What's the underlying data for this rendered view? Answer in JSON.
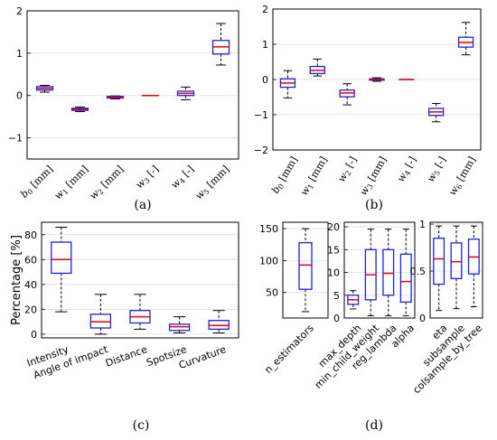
{
  "chart_data": [
    {
      "panel": "a",
      "panel_label": "(a)",
      "type": "box",
      "ylim": [
        -1.5,
        2
      ],
      "yticks": [
        -1,
        0,
        1,
        2
      ],
      "ytick_labels": [
        "−1",
        "0",
        "1",
        "2"
      ],
      "grid": true,
      "categories": [
        "b0 [mm]",
        "w1 [mm]",
        "w2 [mm]",
        "w3 [-]",
        "w4 [-]",
        "w5 [mm]"
      ],
      "tick_labels": [
        {
          "main": "b",
          "sub": "0",
          "unit": "[mm]"
        },
        {
          "main": "w",
          "sub": "1",
          "unit": "[mm]"
        },
        {
          "main": "w",
          "sub": "2",
          "unit": "[mm]"
        },
        {
          "main": "w",
          "sub": "3",
          "unit": "[-]"
        },
        {
          "main": "w",
          "sub": "4",
          "unit": "[-]"
        },
        {
          "main": "w",
          "sub": "5",
          "unit": "[mm]"
        }
      ],
      "boxes": [
        {
          "whisker_low": 0.08,
          "q1": 0.13,
          "median": 0.17,
          "q3": 0.21,
          "whisker_high": 0.24
        },
        {
          "whisker_low": -0.38,
          "q1": -0.35,
          "median": -0.32,
          "q3": -0.3,
          "whisker_high": -0.27
        },
        {
          "whisker_low": -0.08,
          "q1": -0.06,
          "median": -0.04,
          "q3": -0.02,
          "whisker_high": -0.01
        },
        {
          "whisker_low": 0.0,
          "q1": 0.0,
          "median": 0.0,
          "q3": 0.0,
          "whisker_high": 0.0
        },
        {
          "whisker_low": -0.1,
          "q1": 0.0,
          "median": 0.05,
          "q3": 0.1,
          "whisker_high": 0.2
        },
        {
          "whisker_low": 0.72,
          "q1": 0.98,
          "median": 1.15,
          "q3": 1.3,
          "whisker_high": 1.7
        }
      ]
    },
    {
      "panel": "b",
      "panel_label": "(b)",
      "type": "box",
      "ylim": [
        -2,
        2
      ],
      "yticks": [
        -2,
        -1,
        0,
        1,
        2
      ],
      "ytick_labels": [
        "−2",
        "−1",
        "0",
        "1",
        "2"
      ],
      "grid": true,
      "categories": [
        "b0 [mm]",
        "w1 [mm]",
        "w2 [-]",
        "w3 [mm]",
        "w4 [-]",
        "w5 [-]",
        "w6 [mm]"
      ],
      "tick_labels": [
        {
          "main": "b",
          "sub": "0",
          "unit": "[mm]"
        },
        {
          "main": "w",
          "sub": "1",
          "unit": "[mm]"
        },
        {
          "main": "w",
          "sub": "2",
          "unit": "[-]"
        },
        {
          "main": "w",
          "sub": "3",
          "unit": "[mm]"
        },
        {
          "main": "w",
          "sub": "4",
          "unit": "[-]"
        },
        {
          "main": "w",
          "sub": "5",
          "unit": "[-]"
        },
        {
          "main": "w",
          "sub": "6",
          "unit": "[mm]"
        }
      ],
      "boxes": [
        {
          "whisker_low": -0.52,
          "q1": -0.22,
          "median": -0.1,
          "q3": 0.02,
          "whisker_high": 0.25
        },
        {
          "whisker_low": 0.1,
          "q1": 0.17,
          "median": 0.26,
          "q3": 0.37,
          "whisker_high": 0.58
        },
        {
          "whisker_low": -0.72,
          "q1": -0.49,
          "median": -0.38,
          "q3": -0.3,
          "whisker_high": -0.12
        },
        {
          "whisker_low": -0.05,
          "q1": -0.02,
          "median": 0.0,
          "q3": 0.02,
          "whisker_high": 0.05
        },
        {
          "whisker_low": 0.0,
          "q1": 0.0,
          "median": 0.0,
          "q3": 0.0,
          "whisker_high": 0.0
        },
        {
          "whisker_low": -1.2,
          "q1": -1.02,
          "median": -0.92,
          "q3": -0.82,
          "whisker_high": -0.68
        },
        {
          "whisker_low": 0.7,
          "q1": 0.92,
          "median": 1.05,
          "q3": 1.2,
          "whisker_high": 1.62
        }
      ]
    },
    {
      "panel": "c",
      "panel_label": "(c)",
      "type": "box",
      "ylabel": "Percentage [%]",
      "ylim": [
        -3,
        90
      ],
      "yticks": [
        0,
        20,
        40,
        60,
        80
      ],
      "ytick_labels": [
        "0",
        "20",
        "40",
        "60",
        "80"
      ],
      "grid": true,
      "categories": [
        "Intensity",
        "Angle of impact",
        "Distance",
        "Spotsize",
        "Curvature"
      ],
      "boxes": [
        {
          "whisker_low": 18,
          "q1": 49,
          "median": 60,
          "q3": 74,
          "whisker_high": 86
        },
        {
          "whisker_low": 0,
          "q1": 5,
          "median": 10,
          "q3": 16,
          "whisker_high": 32
        },
        {
          "whisker_low": 4,
          "q1": 9,
          "median": 14,
          "q3": 19,
          "whisker_high": 32
        },
        {
          "whisker_low": 1,
          "q1": 3,
          "median": 6,
          "q3": 8,
          "whisker_high": 14
        },
        {
          "whisker_low": 1,
          "q1": 4,
          "median": 7,
          "q3": 11,
          "whisker_high": 19
        }
      ]
    },
    {
      "panel": "d",
      "panel_label": "(d)",
      "type": "box",
      "subplots": [
        {
          "ylim": [
            10,
            160
          ],
          "yticks": [
            50,
            100,
            150
          ],
          "ytick_labels": [
            "50",
            "100",
            "150"
          ],
          "categories": [
            "n_estimators"
          ],
          "boxes": [
            {
              "whisker_low": 20,
              "q1": 55,
              "median": 93,
              "q3": 128,
              "whisker_high": 150
            }
          ]
        },
        {
          "ylim": [
            0,
            21
          ],
          "yticks": [
            0,
            5,
            10,
            15,
            20
          ],
          "ytick_labels": [
            "0",
            "5",
            "10",
            "15",
            "20"
          ],
          "categories": [
            "max_depth",
            "min_child_weight",
            "reg_lambda",
            "alpha"
          ],
          "boxes": [
            {
              "whisker_low": 2,
              "q1": 3,
              "median": 4,
              "q3": 5,
              "whisker_high": 6
            },
            {
              "whisker_low": 0.5,
              "q1": 4,
              "median": 9.5,
              "q3": 15,
              "whisker_high": 19.5
            },
            {
              "whisker_low": 0.5,
              "q1": 5,
              "median": 9.8,
              "q3": 15,
              "whisker_high": 19.5
            },
            {
              "whisker_low": 0.5,
              "q1": 3.5,
              "median": 8,
              "q3": 14,
              "whisker_high": 19.5
            }
          ]
        },
        {
          "ylim": [
            0,
            1.02
          ],
          "yticks": [
            0,
            0.5,
            1
          ],
          "ytick_labels": [
            "0",
            "0.5",
            "1"
          ],
          "categories": [
            "eta",
            "subsample",
            "colsample_by_tree"
          ],
          "boxes": [
            {
              "whisker_low": 0.08,
              "q1": 0.36,
              "median": 0.63,
              "q3": 0.85,
              "whisker_high": 0.98
            },
            {
              "whisker_low": 0.1,
              "q1": 0.42,
              "median": 0.6,
              "q3": 0.8,
              "whisker_high": 0.98
            },
            {
              "whisker_low": 0.12,
              "q1": 0.47,
              "median": 0.65,
              "q3": 0.84,
              "whisker_high": 0.98
            }
          ]
        }
      ]
    }
  ]
}
